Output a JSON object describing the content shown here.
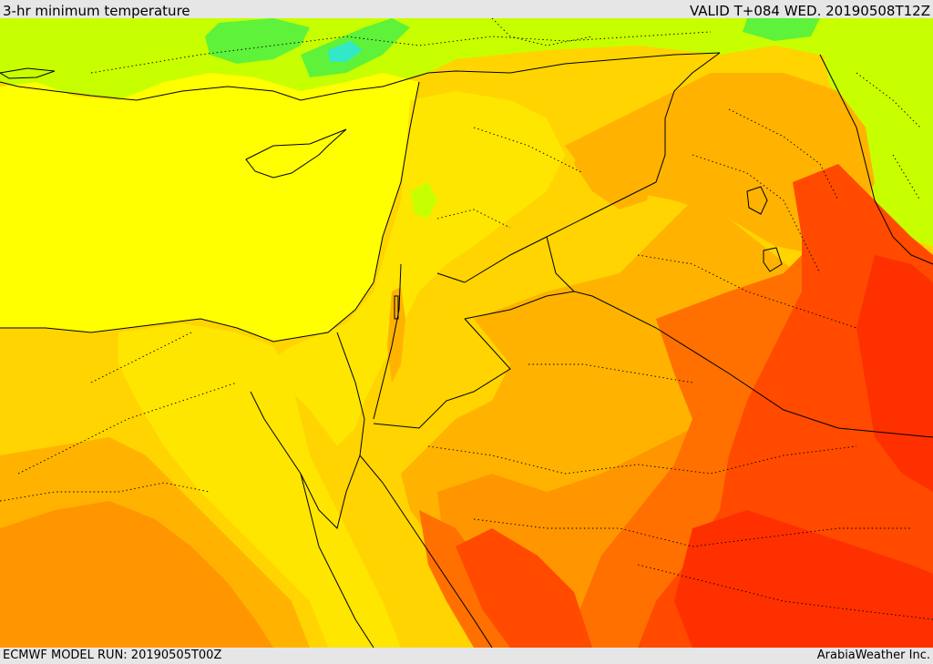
{
  "header": {
    "title": "3-hr minimum temperature",
    "valid": "VALID T+084 WED. 20190508T12Z"
  },
  "footer": {
    "model_run": "ECMWF MODEL RUN: 20190505T00Z",
    "credit": "ArabiaWeather Inc."
  },
  "palette": {
    "cool_green": "#5ef23a",
    "cyan": "#31e8c8",
    "lime": "#c8ff00",
    "sea_yellow": "#ffff00",
    "light_yellow": "#ffe600",
    "gold": "#ffd400",
    "orange_light": "#ffb300",
    "orange": "#ff9600",
    "orange_dark": "#ff7000",
    "red_orange": "#ff4a00",
    "red": "#ff3000",
    "border": "#000000"
  }
}
